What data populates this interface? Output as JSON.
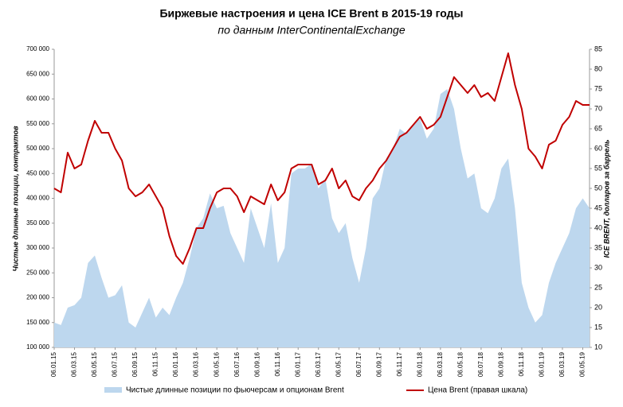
{
  "chart_data": {
    "type": "area-line",
    "title": "Биржевые настроения и цена ICE Brent в 2015-19 годы",
    "subtitle": "по данным InterContinentalExchange",
    "y_label": "Чистые длинные позиции, контрактов",
    "y2_label": "ICE BRENT, долларов за баррель",
    "categories": [
      "06.01.15",
      null,
      null,
      "06.03.15",
      null,
      null,
      "06.05.15",
      null,
      null,
      "06.07.15",
      null,
      null,
      "06.09.15",
      null,
      null,
      "06.11.15",
      null,
      null,
      "06.01.16",
      null,
      null,
      "06.03.16",
      null,
      null,
      "06.05.16",
      null,
      null,
      "06.07.16",
      null,
      null,
      "06.09.16",
      null,
      null,
      "06.11.16",
      null,
      null,
      "06.01.17",
      null,
      null,
      "06.03.17",
      null,
      null,
      "06.05.17",
      null,
      null,
      "06.07.17",
      null,
      null,
      "06.09.17",
      null,
      null,
      "06.11.17",
      null,
      null,
      "06.01.18",
      null,
      null,
      "06.03.18",
      null,
      null,
      "06.05.18",
      null,
      null,
      "06.07.18",
      null,
      null,
      "06.09.18",
      null,
      null,
      "06.11.18",
      null,
      null,
      "06.01.19",
      null,
      null,
      "06.03.19",
      null,
      null,
      "06.05.19",
      null
    ],
    "series": [
      {
        "name": "Чистые длинные позиции по фьючерсам и опционам Brent",
        "color": "#bdd7ee",
        "values": [
          150000,
          145000,
          180000,
          185000,
          200000,
          270000,
          285000,
          240000,
          200000,
          205000,
          225000,
          150000,
          140000,
          170000,
          200000,
          160000,
          180000,
          165000,
          200000,
          230000,
          280000,
          340000,
          360000,
          410000,
          380000,
          385000,
          330000,
          300000,
          270000,
          380000,
          340000,
          300000,
          390000,
          270000,
          300000,
          450000,
          460000,
          460000,
          470000,
          420000,
          440000,
          360000,
          330000,
          350000,
          280000,
          230000,
          300000,
          400000,
          420000,
          480000,
          500000,
          540000,
          530000,
          550000,
          560000,
          520000,
          540000,
          610000,
          620000,
          580000,
          500000,
          440000,
          450000,
          380000,
          370000,
          400000,
          460000,
          480000,
          380000,
          230000,
          180000,
          150000,
          165000,
          230000,
          270000,
          300000,
          330000,
          380000,
          400000,
          380000
        ]
      },
      {
        "name": "Цена Brent (правая шкала)",
        "color": "#c00000",
        "axis": "y2",
        "values": [
          50,
          49,
          59,
          55,
          56,
          62,
          67,
          64,
          64,
          60,
          57,
          50,
          48,
          49,
          51,
          48,
          45,
          38,
          33,
          31,
          35,
          40,
          40,
          45,
          49,
          50,
          50,
          48,
          44,
          48,
          47,
          46,
          51,
          47,
          49,
          55,
          56,
          56,
          56,
          51,
          52,
          55,
          50,
          52,
          48,
          47,
          50,
          52,
          55,
          57,
          60,
          63,
          64,
          66,
          68,
          65,
          66,
          68,
          73,
          78,
          76,
          74,
          76,
          73,
          74,
          72,
          78,
          84,
          76,
          70,
          60,
          58,
          55,
          61,
          62,
          66,
          68,
          72,
          71,
          71
        ]
      }
    ],
    "ylim": [
      100000,
      700000
    ],
    "yticks": [
      {
        "value": 100000,
        "label": "100 000"
      },
      {
        "value": 150000,
        "label": "150 000"
      },
      {
        "value": 200000,
        "label": "200 000"
      },
      {
        "value": 250000,
        "label": "250 000"
      },
      {
        "value": 300000,
        "label": "300 000"
      },
      {
        "value": 350000,
        "label": "350 000"
      },
      {
        "value": 400000,
        "label": "400 000"
      },
      {
        "value": 450000,
        "label": "450 000"
      },
      {
        "value": 500000,
        "label": "500 000"
      },
      {
        "value": 550000,
        "label": "550 000"
      },
      {
        "value": 600000,
        "label": "600 000"
      },
      {
        "value": 650000,
        "label": "650 000"
      },
      {
        "value": 700000,
        "label": "700 000"
      }
    ],
    "y2lim": [
      10,
      85
    ],
    "y2ticks": [
      10,
      15,
      20,
      25,
      30,
      35,
      40,
      45,
      50,
      55,
      60,
      65,
      70,
      75,
      80,
      85
    ],
    "grid": false
  }
}
